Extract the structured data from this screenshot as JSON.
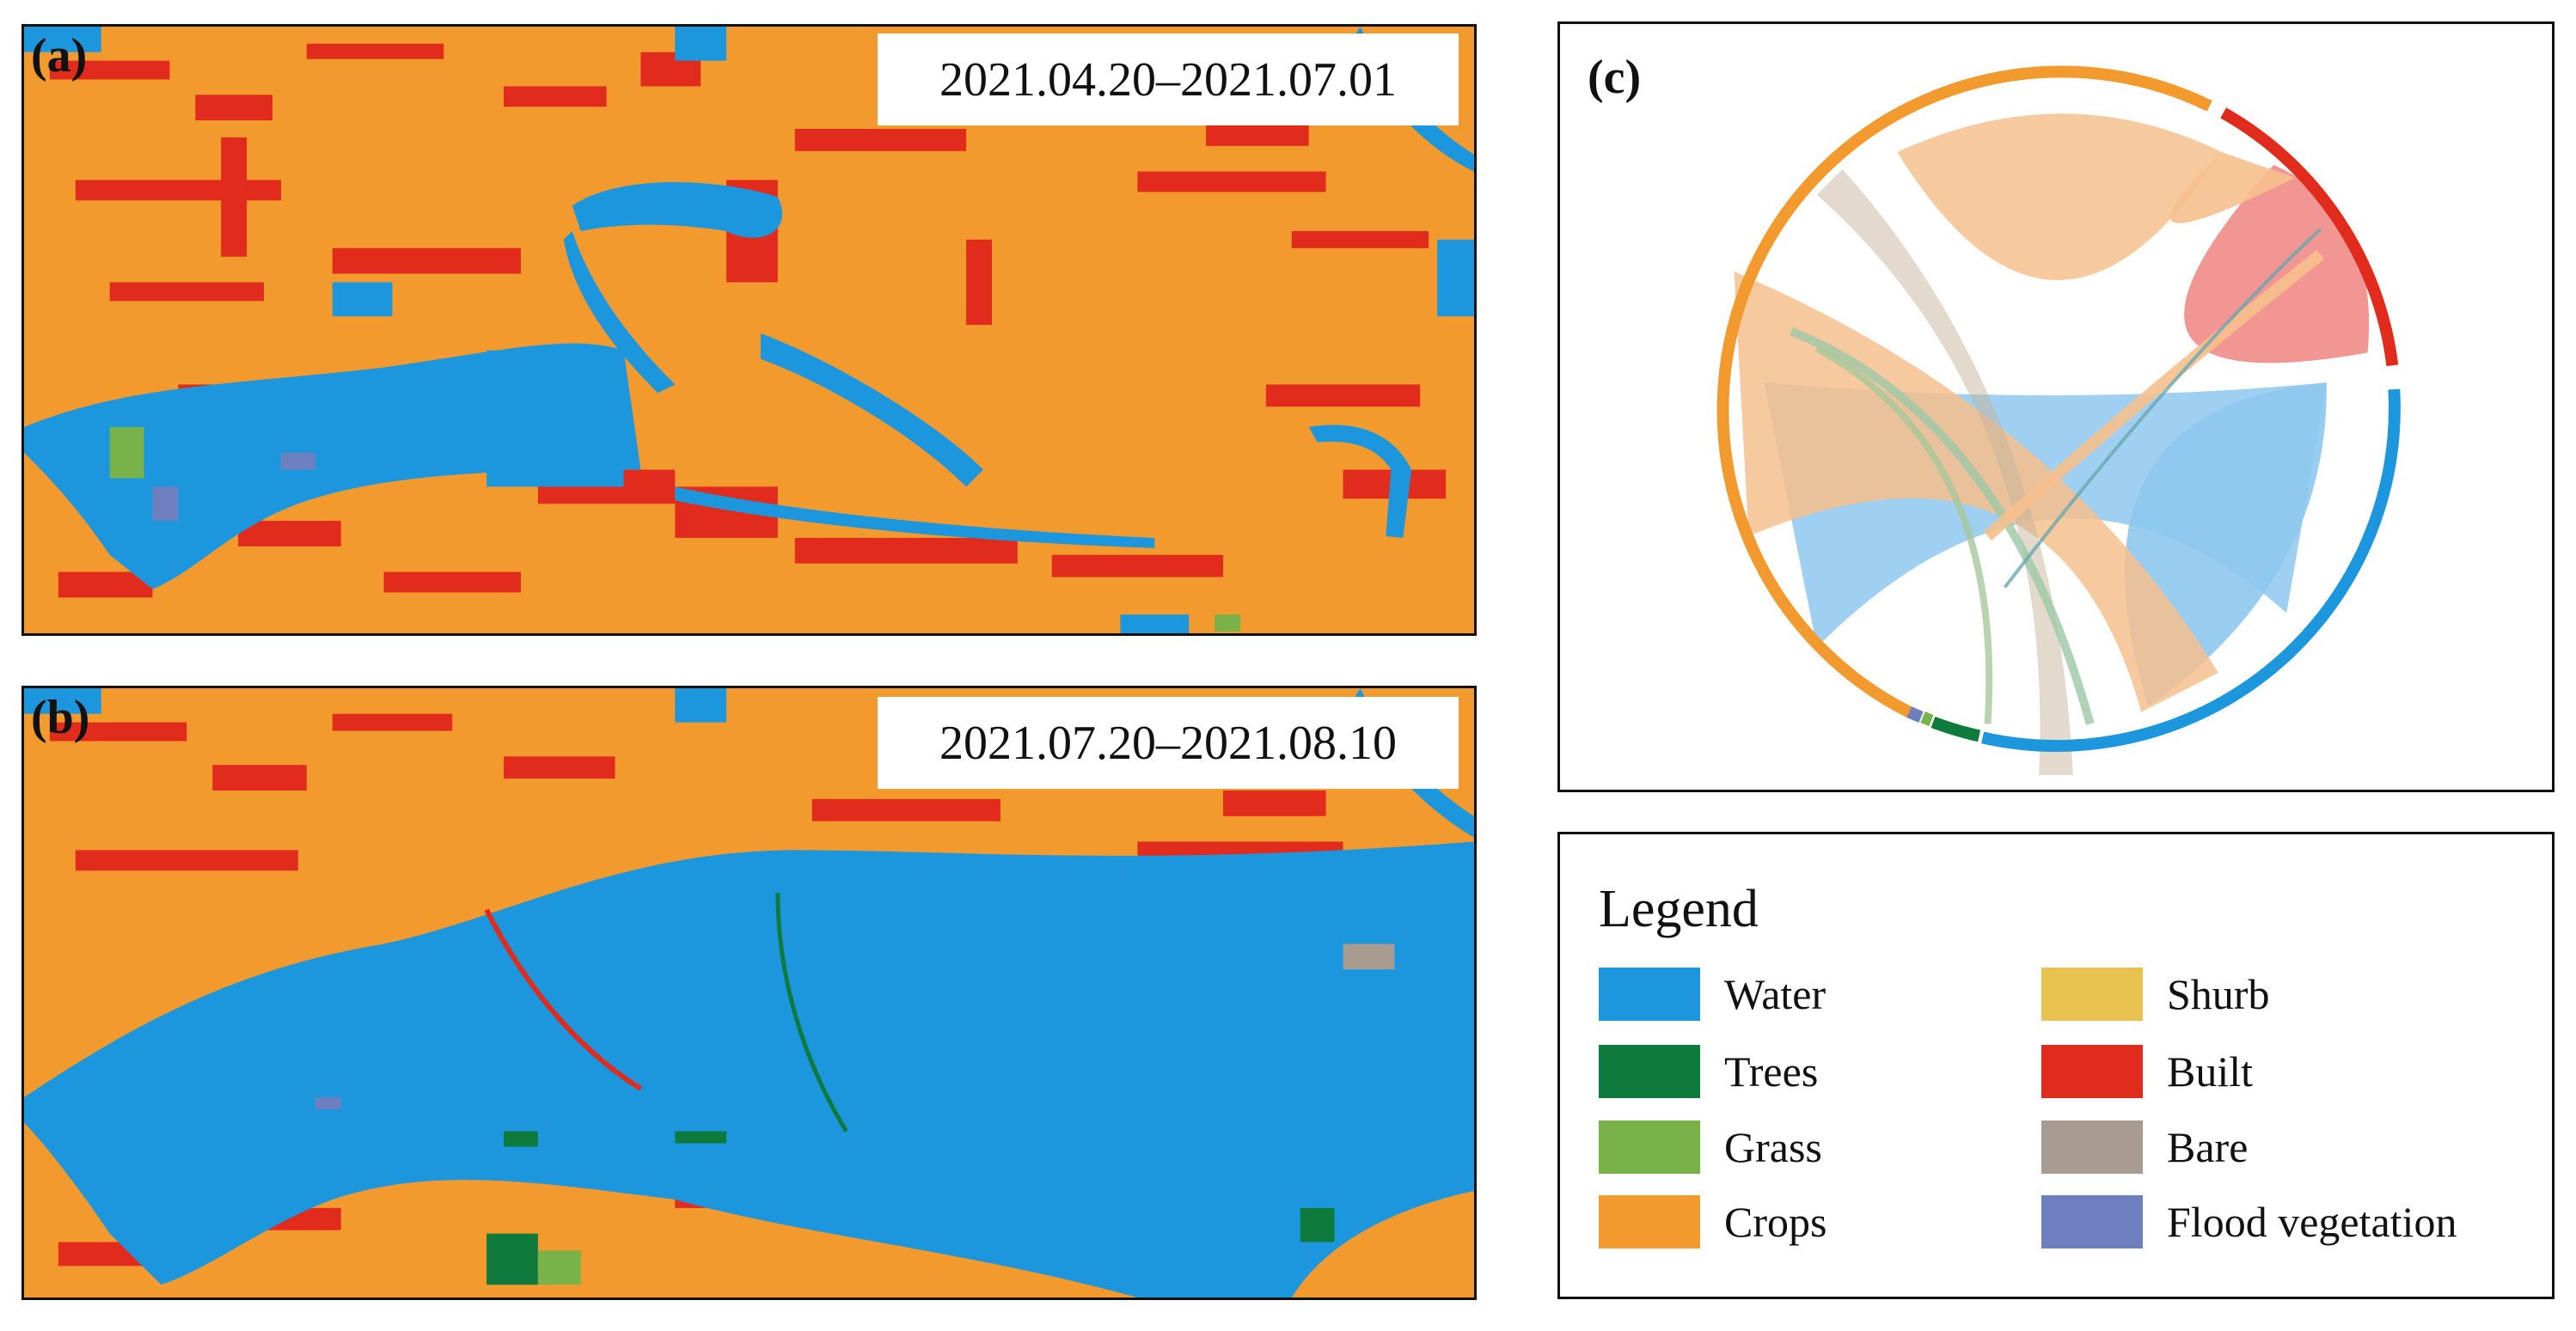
{
  "panels": {
    "a": {
      "label": "(a)",
      "date_range": "2021.04.20–2021.07.01"
    },
    "b": {
      "label": "(b)",
      "date_range": "2021.07.20–2021.08.10"
    },
    "c": {
      "label": "(c)"
    }
  },
  "colors": {
    "water": "#1c97de",
    "trees": "#0e7a3c",
    "grass": "#78b248",
    "crops": "#f39a2e",
    "shrub": "#e8c14f",
    "built": "#e12b1c",
    "bare": "#a89b8f",
    "flood_vegetation": "#6e7fc0"
  },
  "legend": {
    "title": "Legend",
    "items": [
      {
        "key": "water",
        "label": "Water",
        "color": "#1c97de"
      },
      {
        "key": "trees",
        "label": "Trees",
        "color": "#0e7a3c"
      },
      {
        "key": "grass",
        "label": "Grass",
        "color": "#78b248"
      },
      {
        "key": "crops",
        "label": "Crops",
        "color": "#f39a2e"
      },
      {
        "key": "shrub",
        "label": "Shurb",
        "color": "#e8c14f"
      },
      {
        "key": "built",
        "label": "Built",
        "color": "#e12b1c"
      },
      {
        "key": "bare",
        "label": "Bare",
        "color": "#a89b8f"
      },
      {
        "key": "flood_vegetation",
        "label": "Flood vegetation",
        "color": "#6e7fc0"
      }
    ]
  }
}
